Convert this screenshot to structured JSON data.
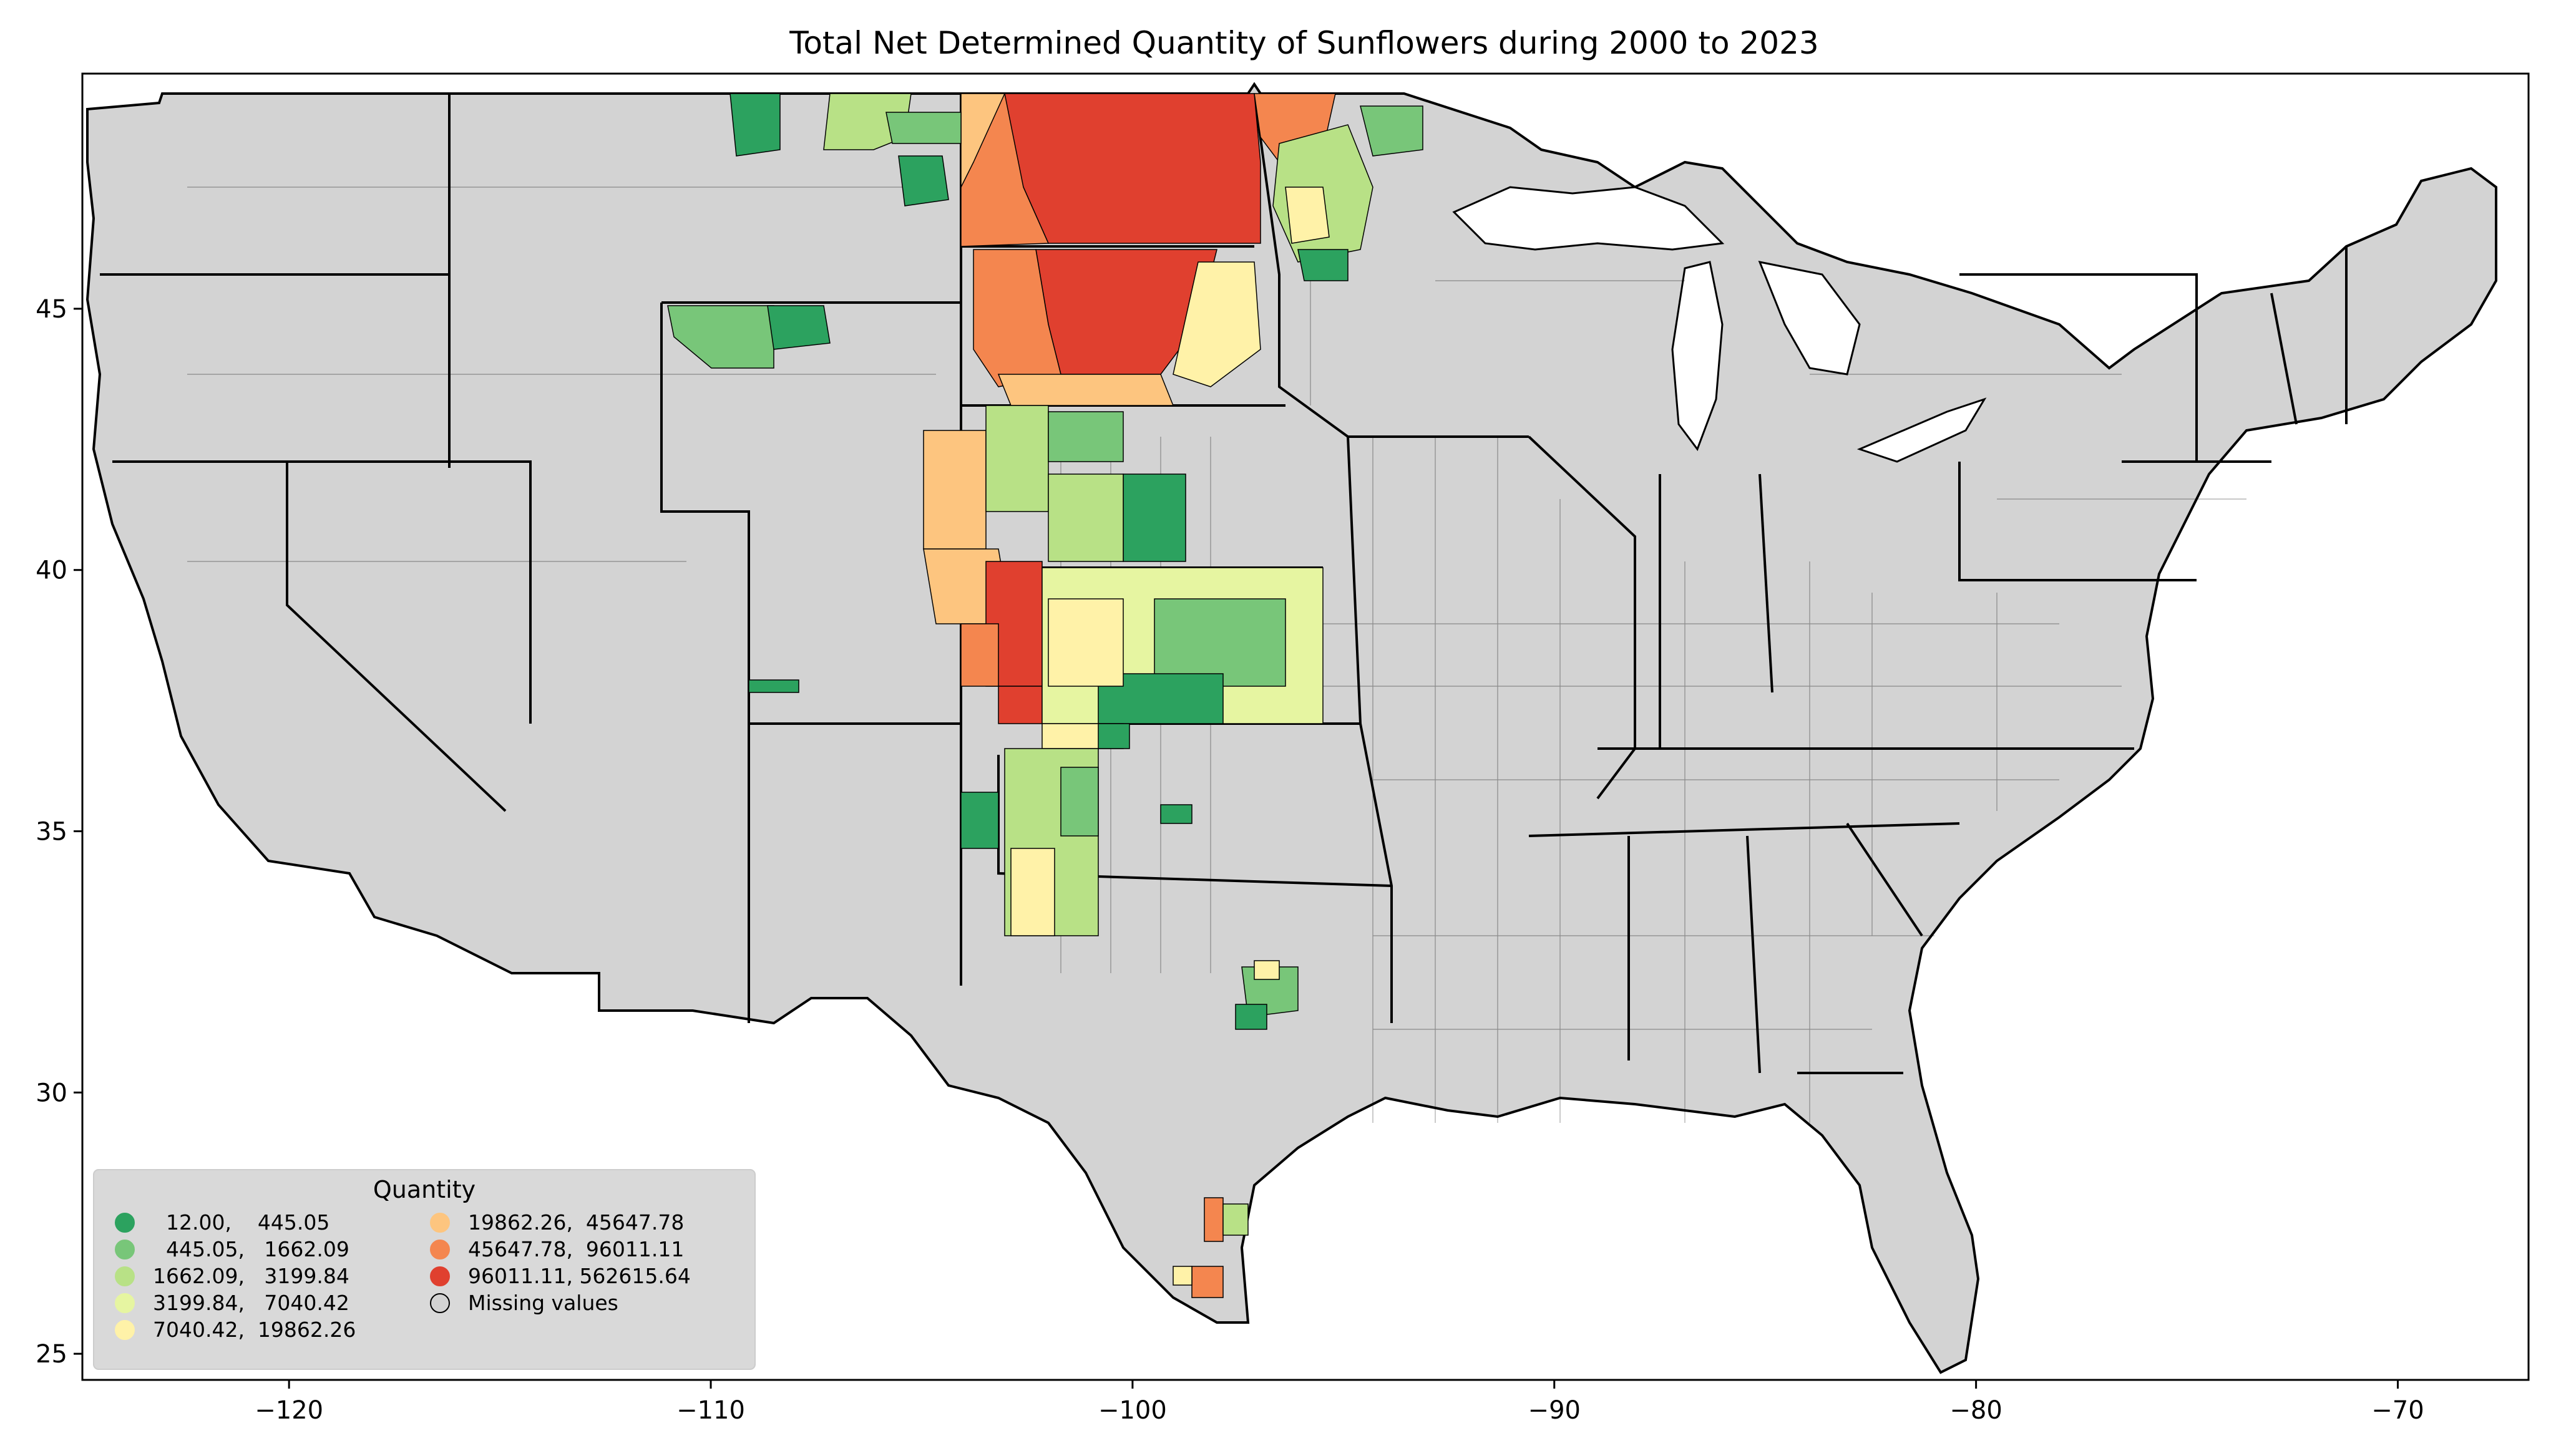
{
  "title": "Total Net Determined Quantity of Sunflowers during 2000 to 2023",
  "axes": {
    "x_ticks": [
      {
        "value": -120,
        "label": "−120"
      },
      {
        "value": -110,
        "label": "−110"
      },
      {
        "value": -100,
        "label": "−100"
      },
      {
        "value": -90,
        "label": "−90"
      },
      {
        "value": -80,
        "label": "−80"
      },
      {
        "value": -70,
        "label": "−70"
      }
    ],
    "y_ticks": [
      {
        "value": 25,
        "label": "25"
      },
      {
        "value": 30,
        "label": "30"
      },
      {
        "value": 35,
        "label": "35"
      },
      {
        "value": 40,
        "label": "40"
      },
      {
        "value": 45,
        "label": "45"
      }
    ],
    "xlim": [
      -124.9,
      -66.9
    ],
    "ylim": [
      24.5,
      49.5
    ]
  },
  "legend": {
    "title": "Quantity",
    "placement": "lower-left",
    "items": [
      {
        "label": "  12.00,    445.05",
        "color": "#2ca25f"
      },
      {
        "label": "  445.05,   1662.09",
        "color": "#78c679"
      },
      {
        "label": "1662.09,   3199.84",
        "color": "#b8e186"
      },
      {
        "label": "3199.84,   7040.42",
        "color": "#e6f5a1"
      },
      {
        "label": "7040.42,  19862.26",
        "color": "#fff2a8"
      },
      {
        "label": "19862.26,  45647.78",
        "color": "#fdc57f"
      },
      {
        "label": "45647.78,  96011.11",
        "color": "#f4864f"
      },
      {
        "label": "96011.11, 562615.64",
        "color": "#e0402f"
      },
      {
        "label": "Missing values",
        "color": "#d3d3d3"
      }
    ]
  },
  "colors": {
    "missing": "#d3d3d3",
    "border": "#000000"
  }
}
